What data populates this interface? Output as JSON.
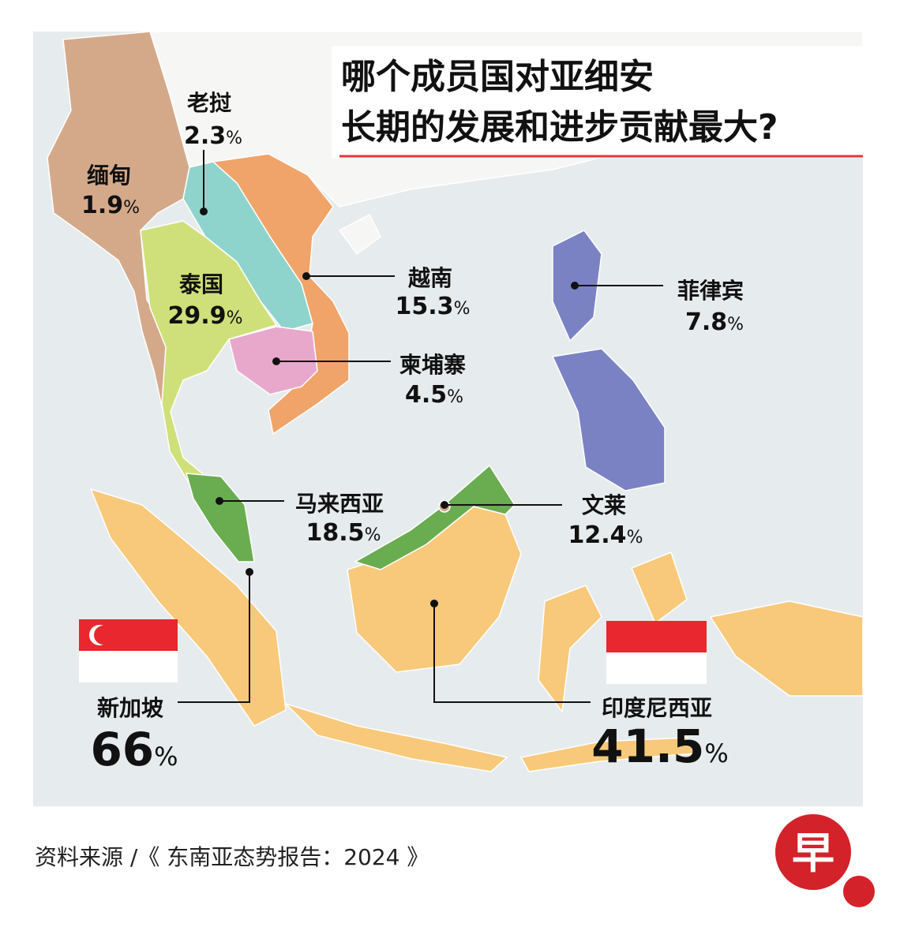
{
  "title": {
    "line1": "哪个成员国对亚细安",
    "line2": "长期的发展和进步贡献最大?"
  },
  "countries": [
    {
      "name": "老挝",
      "value": 2.3,
      "unit": "%"
    },
    {
      "name": "缅甸",
      "value": 1.9,
      "unit": "%"
    },
    {
      "name": "泰国",
      "value": 29.9,
      "unit": "%"
    },
    {
      "name": "越南",
      "value": 15.3,
      "unit": "%"
    },
    {
      "name": "柬埔寨",
      "value": 4.5,
      "unit": "%"
    },
    {
      "name": "菲律宾",
      "value": 7.8,
      "unit": "%"
    },
    {
      "name": "马来西亚",
      "value": 18.5,
      "unit": "%"
    },
    {
      "name": "文莱",
      "value": 12.4,
      "unit": "%"
    },
    {
      "name": "新加坡",
      "value": 66,
      "unit": "%"
    },
    {
      "name": "印度尼西亚",
      "value": 41.5,
      "unit": "%"
    }
  ],
  "source": "资料来源 /《 东南亚态势报告：2024 》",
  "logo": "早"
}
